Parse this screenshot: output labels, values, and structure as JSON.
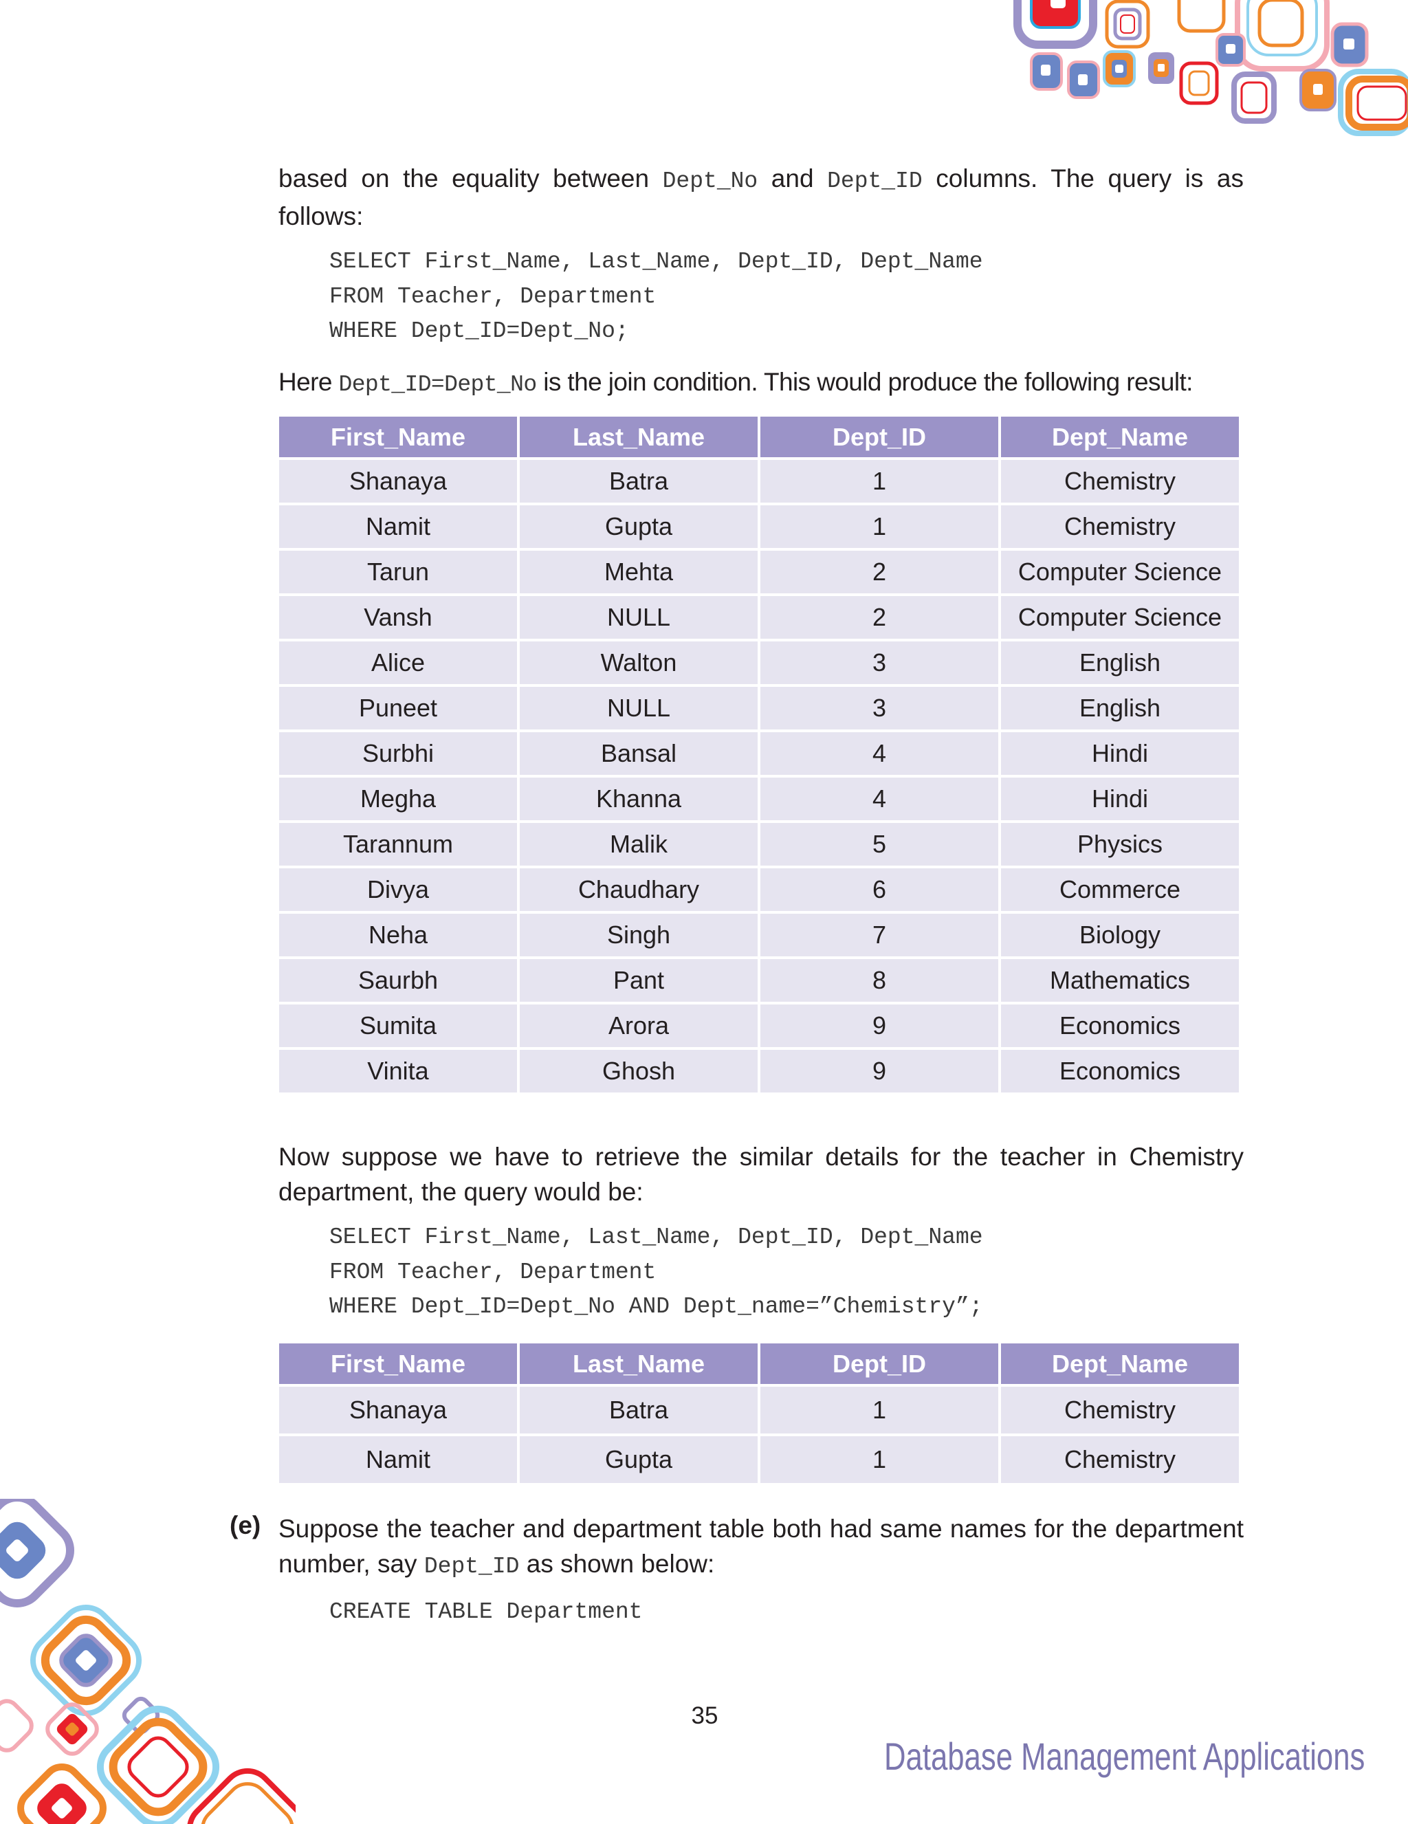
{
  "intro": {
    "t1": "based on the equality between ",
    "c1": "Dept_No",
    "t2": " and ",
    "c2": "Dept_ID",
    "t3": " columns. The query is as follows:"
  },
  "query1": [
    "SELECT First_Name, Last_Name, Dept_ID, Dept_Name",
    "FROM Teacher, Department",
    "WHERE Dept_ID=Dept_No;"
  ],
  "join_note": {
    "t1": "Here ",
    "c1": "Dept_ID=Dept_No",
    "t2": " is the join condition. This would produce the following result:"
  },
  "table1": {
    "headers": [
      "First_Name",
      "Last_Name",
      "Dept_ID",
      "Dept_Name"
    ],
    "rows": [
      [
        "Shanaya",
        "Batra",
        "1",
        "Chemistry"
      ],
      [
        "Namit",
        "Gupta",
        "1",
        "Chemistry"
      ],
      [
        "Tarun",
        "Mehta",
        "2",
        "Computer Science"
      ],
      [
        "Vansh",
        "NULL",
        "2",
        "Computer Science"
      ],
      [
        "Alice",
        "Walton",
        "3",
        "English"
      ],
      [
        "Puneet",
        "NULL",
        "3",
        "English"
      ],
      [
        "Surbhi",
        "Bansal",
        "4",
        "Hindi"
      ],
      [
        "Megha",
        "Khanna",
        "4",
        "Hindi"
      ],
      [
        "Tarannum",
        "Malik",
        "5",
        "Physics"
      ],
      [
        "Divya",
        "Chaudhary",
        "6",
        "Commerce"
      ],
      [
        "Neha",
        "Singh",
        "7",
        "Biology"
      ],
      [
        "Saurbh",
        "Pant",
        "8",
        "Mathematics"
      ],
      [
        "Sumita",
        "Arora",
        "9",
        "Economics"
      ],
      [
        "Vinita",
        "Ghosh",
        "9",
        "Economics"
      ]
    ]
  },
  "para2": "Now suppose we have to retrieve the similar details for the teacher in Chemistry department, the query would be:",
  "query2": [
    "SELECT First_Name, Last_Name, Dept_ID, Dept_Name",
    "FROM Teacher, Department",
    "WHERE Dept_ID=Dept_No AND Dept_name=”Chemistry”;"
  ],
  "table2": {
    "headers": [
      "First_Name",
      "Last_Name",
      "Dept_ID",
      "Dept_Name"
    ],
    "rows": [
      [
        "Shanaya",
        "Batra",
        "1",
        "Chemistry"
      ],
      [
        "Namit",
        "Gupta",
        "1",
        "Chemistry"
      ]
    ]
  },
  "item_e": {
    "label": "(e)",
    "t1": "Suppose the teacher and department table both had same names for the department number, say ",
    "c1": "Dept_ID",
    "t2": " as shown below:"
  },
  "query3": [
    "CREATE TABLE Department"
  ],
  "page_number": "35",
  "footer": "Database Management Applications",
  "colors": {
    "header_bg": "#9b93c8",
    "row_bg": "#e6e4f0",
    "footer_text": "#7b76ae"
  }
}
